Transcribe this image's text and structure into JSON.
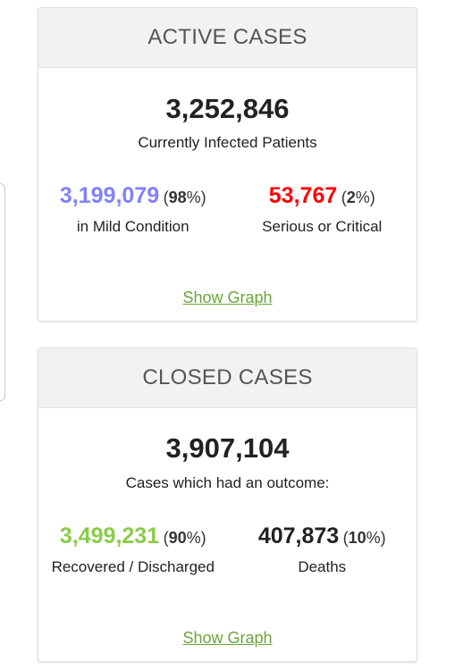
{
  "active": {
    "title": "ACTIVE CASES",
    "total": "3,252,846",
    "total_label": "Currently Infected Patients",
    "mild": {
      "value": "3,199,079",
      "pct": "98",
      "label": "in Mild Condition"
    },
    "serious": {
      "value": "53,767",
      "pct": "2",
      "label": "Serious or Critical"
    },
    "link": "Show Graph"
  },
  "closed": {
    "title": "CLOSED CASES",
    "total": "3,907,104",
    "total_label": "Cases which had an outcome:",
    "recovered": {
      "value": "3,499,231",
      "pct": "90",
      "label": "Recovered / Discharged"
    },
    "deaths": {
      "value": "407,873",
      "pct": "10",
      "label": "Deaths"
    },
    "link": "Show Graph"
  },
  "colors": {
    "mild": "#8080ff",
    "serious": "#ff0000",
    "recovered": "#8acc48",
    "link": "#6ba53a"
  }
}
